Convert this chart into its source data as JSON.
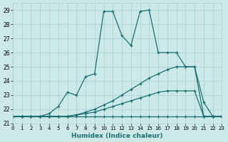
{
  "xlabel": "Humidex (Indice chaleur)",
  "xlim": [
    0,
    23
  ],
  "ylim": [
    21.0,
    29.5
  ],
  "yticks": [
    21,
    22,
    23,
    24,
    25,
    26,
    27,
    28,
    29
  ],
  "xticks": [
    0,
    1,
    2,
    3,
    4,
    5,
    6,
    7,
    8,
    9,
    10,
    11,
    12,
    13,
    14,
    15,
    16,
    17,
    18,
    19,
    20,
    21,
    22,
    23
  ],
  "bg_color": "#cce8e8",
  "grid_color": "#aad4d4",
  "line_color": "#1a7070",
  "line_width": 0.9,
  "marker": "+",
  "markersize": 3.5,
  "markeredgewidth": 0.9,
  "series": [
    {
      "x": [
        0,
        1,
        2,
        3,
        4,
        5,
        6,
        7,
        8,
        9,
        10,
        11,
        12,
        13,
        14,
        15,
        16,
        17,
        18,
        19,
        20,
        21,
        22,
        23
      ],
      "y": [
        21.5,
        21.5,
        21.5,
        21.5,
        21.5,
        21.5,
        21.5,
        21.5,
        21.5,
        21.5,
        21.5,
        21.5,
        21.5,
        21.5,
        21.5,
        21.5,
        21.5,
        21.5,
        21.5,
        21.5,
        21.5,
        21.5,
        21.5,
        21.5
      ]
    },
    {
      "x": [
        0,
        1,
        2,
        3,
        4,
        5,
        6,
        7,
        8,
        9,
        10,
        11,
        12,
        13,
        14,
        15,
        16,
        17,
        18,
        19,
        20,
        21,
        22,
        23
      ],
      "y": [
        21.5,
        21.5,
        21.5,
        21.5,
        21.5,
        21.5,
        21.5,
        21.6,
        21.7,
        21.8,
        22.0,
        22.2,
        22.4,
        22.6,
        22.8,
        23.0,
        23.2,
        23.3,
        23.3,
        23.3,
        23.3,
        21.5,
        21.5,
        21.5
      ]
    },
    {
      "x": [
        0,
        1,
        2,
        3,
        4,
        5,
        6,
        7,
        8,
        9,
        10,
        11,
        12,
        13,
        14,
        15,
        16,
        17,
        18,
        19,
        20,
        21,
        22,
        23
      ],
      "y": [
        21.5,
        21.5,
        21.5,
        21.5,
        21.5,
        21.5,
        21.5,
        21.6,
        21.8,
        22.0,
        22.3,
        22.6,
        23.0,
        23.4,
        23.8,
        24.2,
        24.5,
        24.8,
        25.0,
        25.0,
        25.0,
        21.5,
        21.5,
        21.5
      ]
    },
    {
      "x": [
        0,
        1,
        2,
        3,
        4,
        5,
        6,
        7,
        8,
        9,
        10,
        11,
        12,
        13,
        14,
        15,
        16,
        17,
        18,
        19,
        20,
        21,
        22,
        23
      ],
      "y": [
        21.5,
        21.5,
        21.5,
        21.5,
        21.7,
        22.2,
        23.2,
        23.0,
        24.3,
        24.5,
        28.9,
        28.9,
        27.2,
        26.5,
        28.9,
        29.0,
        26.0,
        26.0,
        26.0,
        25.0,
        25.0,
        22.5,
        21.5,
        21.5
      ]
    }
  ]
}
